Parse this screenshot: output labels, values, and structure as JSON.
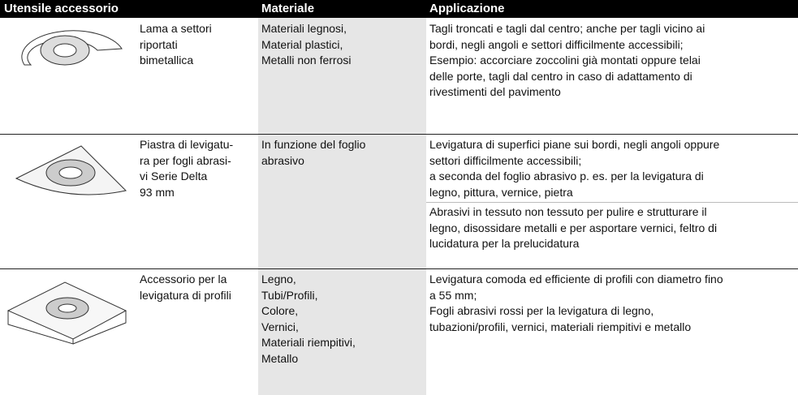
{
  "table": {
    "header": [
      "Utensile accessorio",
      "Materiale",
      "Applicazione"
    ],
    "rows": [
      {
        "name": [
          "Lama a settori",
          "riportati",
          "bimetallica"
        ],
        "material": [
          "Materiali legnosi,",
          "Material plastici,",
          "Metalli non ferrosi"
        ],
        "application": [
          [
            "Tagli troncati e tagli dal centro; anche per tagli vicino ai",
            "bordi, negli angoli e settori difficilmente accessibili;",
            "Esempio: accorciare zoccolini già montati oppure telai",
            "delle porte, tagli dal centro in caso di adattamento di",
            "rivestimenti del pavimento"
          ]
        ]
      },
      {
        "name": [
          "Piastra di levigatu-",
          "ra per fogli abrasi-",
          "vi Serie Delta",
          "93 mm"
        ],
        "material": [
          "In funzione del foglio",
          "abrasivo"
        ],
        "application": [
          [
            "Levigatura di superfici piane sui bordi, negli angoli oppure",
            "settori difficilmente accessibili;",
            "a seconda del foglio abrasivo p. es. per la levigatura di",
            "legno, pittura, vernice, pietra"
          ],
          [
            "Abrasivi in tessuto non tessuto per pulire e strutturare il",
            "legno, disossidare metalli e per asportare vernici, feltro di",
            "lucidatura per la prelucidatura"
          ]
        ]
      },
      {
        "name": [
          "Accessorio per la",
          "levigatura di profili"
        ],
        "material": [
          "Legno,",
          "Tubi/Profili,",
          "Colore,",
          "Vernici,",
          "Materiali riempitivi,",
          "Metallo"
        ],
        "application": [
          [
            "Levigatura comoda ed efficiente di profili con diametro fino",
            "a 55 mm;",
            "Fogli abrasivi rossi per la levigatura di legno,",
            "tubazioni/profili, vernici, materiali riempitivi e metallo"
          ]
        ]
      }
    ]
  }
}
